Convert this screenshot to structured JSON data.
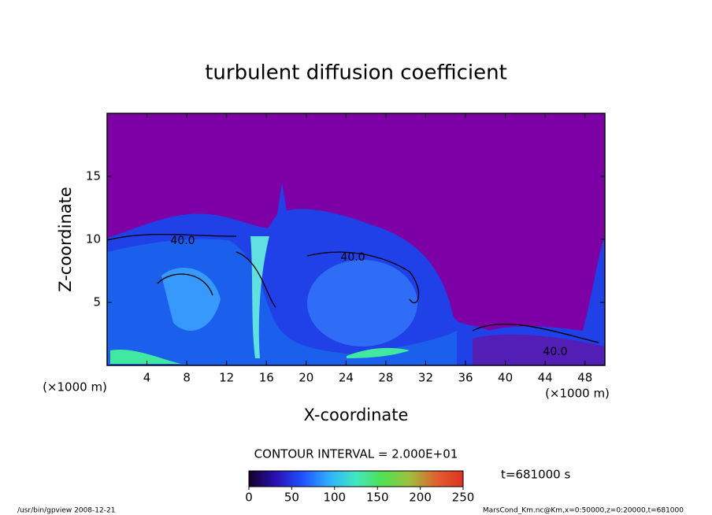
{
  "chart_data": {
    "type": "contour",
    "title": "turbulent diffusion coefficient",
    "xlabel": "X-coordinate",
    "ylabel": "Z-coordinate",
    "x_unit_label": "(×1000 m)",
    "xlim": [
      0,
      50
    ],
    "xticks": [
      4,
      8,
      12,
      16,
      20,
      24,
      28,
      32,
      36,
      40,
      44,
      48
    ],
    "ylim": [
      0,
      20
    ],
    "yticks": [
      5,
      10,
      15
    ],
    "contour_labels": [
      "40.0",
      "40.0",
      "40.0"
    ],
    "contour_interval": "CONTOUR INTERVAL = 2.000E+01",
    "time_label": "t=681000 s",
    "colorbar": {
      "lim": [
        0,
        250
      ],
      "ticks": [
        0,
        50,
        100,
        150,
        200,
        250
      ],
      "colormap": [
        "#14002a",
        "#2a10b0",
        "#2050ff",
        "#30b0ff",
        "#40e8c0",
        "#50e050",
        "#a0c040",
        "#e06030",
        "#e03020"
      ]
    },
    "background_color": "#7d00a6",
    "footer_left": "/usr/bin/gpview  2008-12-21",
    "footer_right": "MarsCond_Km.nc@Km,x=0:50000,z=0:20000,t=681000"
  }
}
